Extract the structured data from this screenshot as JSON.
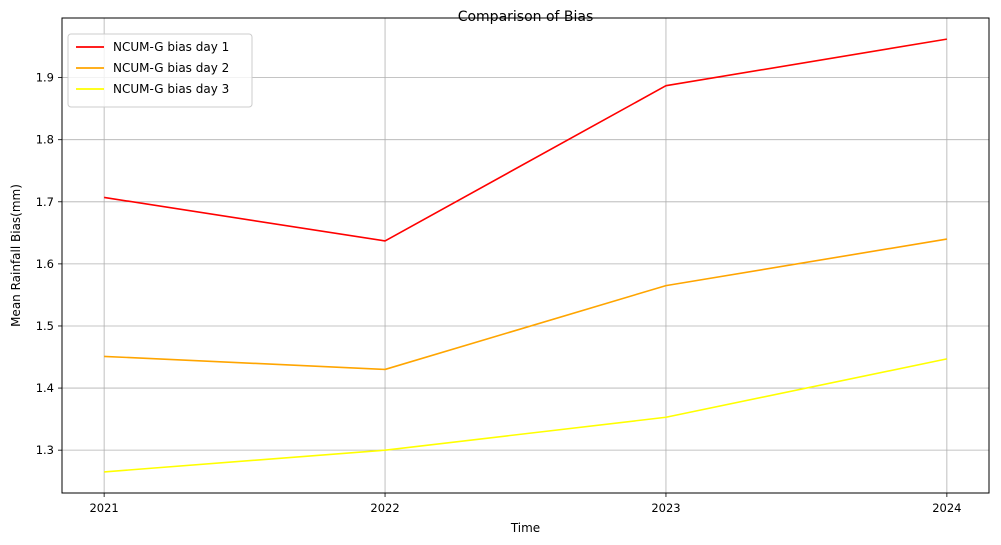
{
  "chart_data": {
    "type": "line",
    "title": "Comparison of Bias",
    "xlabel": "Time",
    "ylabel": "Mean Rainfall Bias(mm)",
    "x": [
      2021,
      2022,
      2023,
      2024
    ],
    "x_tick_labels": [
      "2021",
      "2022",
      "2023",
      "2024"
    ],
    "xlim": [
      2020.85,
      2024.15
    ],
    "y_ticks": [
      1.3,
      1.4,
      1.5,
      1.6,
      1.7,
      1.8,
      1.9
    ],
    "y_tick_labels": [
      "1.3",
      "1.4",
      "1.5",
      "1.6",
      "1.7",
      "1.8",
      "1.9"
    ],
    "ylim": [
      1.231,
      1.996
    ],
    "grid": true,
    "legend_position": "upper-left",
    "series": [
      {
        "name": "NCUM-G bias day 1",
        "color": "#ff0000",
        "values": [
          1.707,
          1.637,
          1.887,
          1.962
        ]
      },
      {
        "name": "NCUM-G bias day 2",
        "color": "#ffa500",
        "values": [
          1.451,
          1.43,
          1.565,
          1.64
        ]
      },
      {
        "name": "NCUM-G bias day 3",
        "color": "#ffff00",
        "values": [
          1.265,
          1.3,
          1.353,
          1.447
        ]
      }
    ]
  }
}
